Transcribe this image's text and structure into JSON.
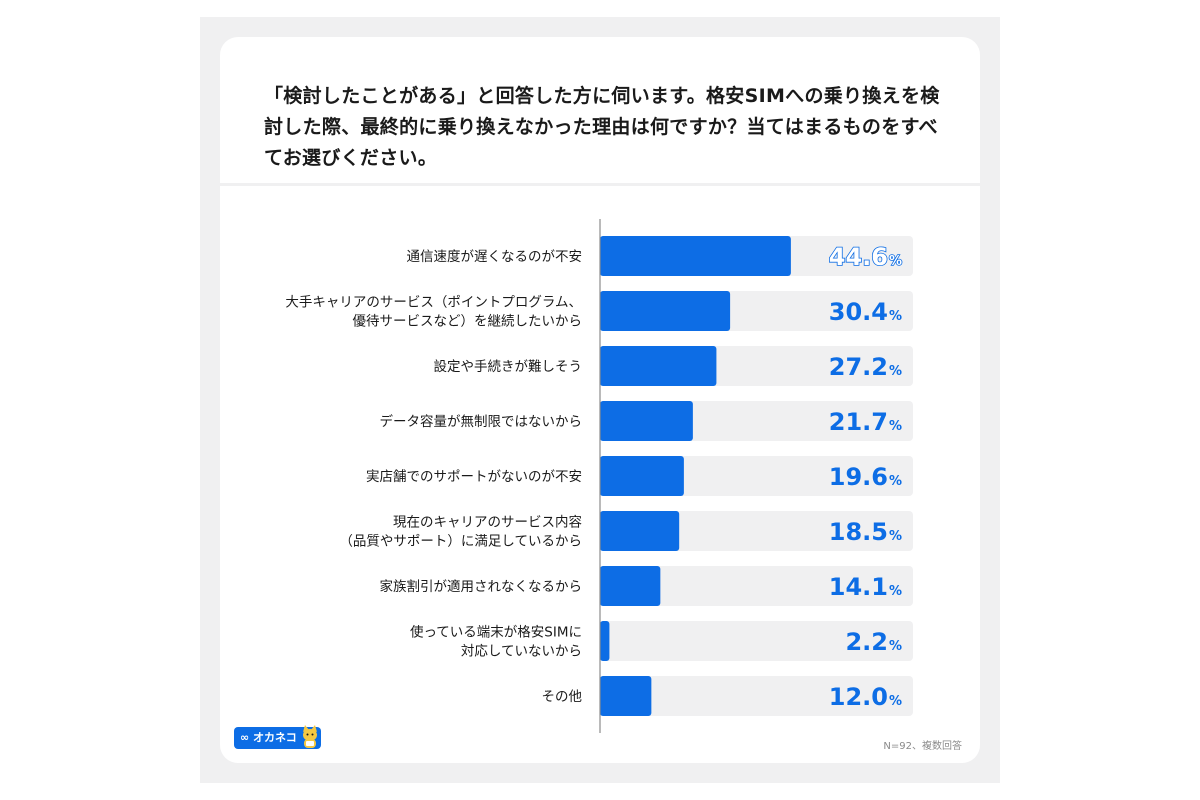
{
  "question": "「検討したことがある」と回答した方に伺います。格安SIMへの乗り換えを検討した際、最終的に乗り換えなかった理由は何ですか？当てはまるものをすべてお選びください。",
  "note": "N=92、複数回答",
  "logo": {
    "text": "∞ オカネコ",
    "icon": "cat-mascot-icon"
  },
  "colors": {
    "bar": "#0d6de5",
    "track": "#f0f0f1",
    "value": "#0d6de5"
  },
  "chart_data": {
    "type": "bar",
    "orientation": "horizontal",
    "unit": "%",
    "xlim": [
      0,
      100
    ],
    "grid": false,
    "title": "",
    "xlabel": "",
    "ylabel": "",
    "categories": [
      "通信速度が遅くなるのが不安",
      "大手キャリアのサービス（ポイントプログラム、\n優待サービスなど）を継続したいから",
      "設定や手続きが難しそう",
      "データ容量が無制限ではないから",
      "実店舗でのサポートがないのが不安",
      "現在のキャリアのサービス内容\n（品質やサポート）に満足しているから",
      "家族割引が適用されなくなるから",
      "使っている端末が格安SIMに\n対応していないから",
      "その他"
    ],
    "values": [
      44.6,
      30.4,
      27.2,
      21.7,
      19.6,
      18.5,
      14.1,
      2.2,
      12.0
    ],
    "value_labels": [
      "44.6",
      "30.4",
      "27.2",
      "21.7",
      "19.6",
      "18.5",
      "14.1",
      "2.2",
      "12.0"
    ]
  }
}
